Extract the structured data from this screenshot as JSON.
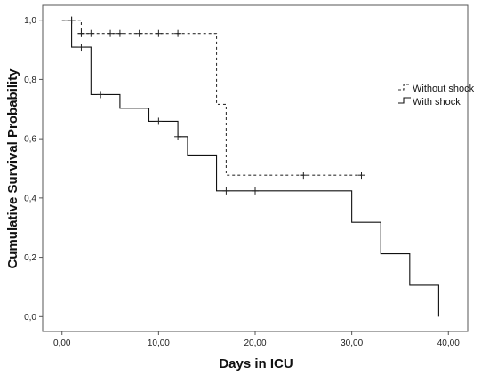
{
  "chart_data": {
    "type": "line",
    "subtype": "kaplan-meier",
    "xlabel": "Days in ICU",
    "ylabel": "Cumulative Survival Probability",
    "xlim": [
      -2,
      42
    ],
    "ylim": [
      -0.05,
      1.05
    ],
    "x_ticks": [
      0,
      10,
      20,
      30,
      40
    ],
    "x_tick_labels": [
      "0,00",
      "10,00",
      "20,00",
      "30,00",
      "40,00"
    ],
    "y_ticks": [
      0.0,
      0.2,
      0.4,
      0.6,
      0.8,
      1.0
    ],
    "y_tick_labels": [
      "0,0",
      "0,2",
      "0,4",
      "0,6",
      "0,8",
      "1,0"
    ],
    "grid": false,
    "legend_position": "right",
    "series": [
      {
        "name": "Without shock",
        "line_style": "dashed",
        "color": "#333333",
        "steps": [
          [
            0,
            1.0
          ],
          [
            2,
            0.955
          ],
          [
            16,
            0.716
          ],
          [
            17,
            0.477
          ]
        ],
        "end_x": 31,
        "censored": [
          [
            1,
            1.0
          ],
          [
            2,
            0.955
          ],
          [
            2,
            0.955
          ],
          [
            3,
            0.955
          ],
          [
            5,
            0.955
          ],
          [
            6,
            0.955
          ],
          [
            8,
            0.955
          ],
          [
            10,
            0.955
          ],
          [
            12,
            0.955
          ],
          [
            25,
            0.477
          ],
          [
            31,
            0.477
          ]
        ]
      },
      {
        "name": "With shock",
        "line_style": "solid",
        "color": "#111111",
        "steps": [
          [
            0,
            1.0
          ],
          [
            1,
            0.909
          ],
          [
            3,
            0.749
          ],
          [
            6,
            0.703
          ],
          [
            9,
            0.659
          ],
          [
            12,
            0.607
          ],
          [
            13,
            0.545
          ],
          [
            16,
            0.424
          ],
          [
            30,
            0.318
          ],
          [
            33,
            0.212
          ],
          [
            36,
            0.106
          ],
          [
            39,
            0.0
          ]
        ],
        "end_x": 39,
        "censored": [
          [
            1,
            1.0
          ],
          [
            2,
            0.909
          ],
          [
            4,
            0.749
          ],
          [
            10,
            0.659
          ],
          [
            12,
            0.607
          ],
          [
            17,
            0.424
          ],
          [
            20,
            0.424
          ]
        ]
      }
    ]
  }
}
